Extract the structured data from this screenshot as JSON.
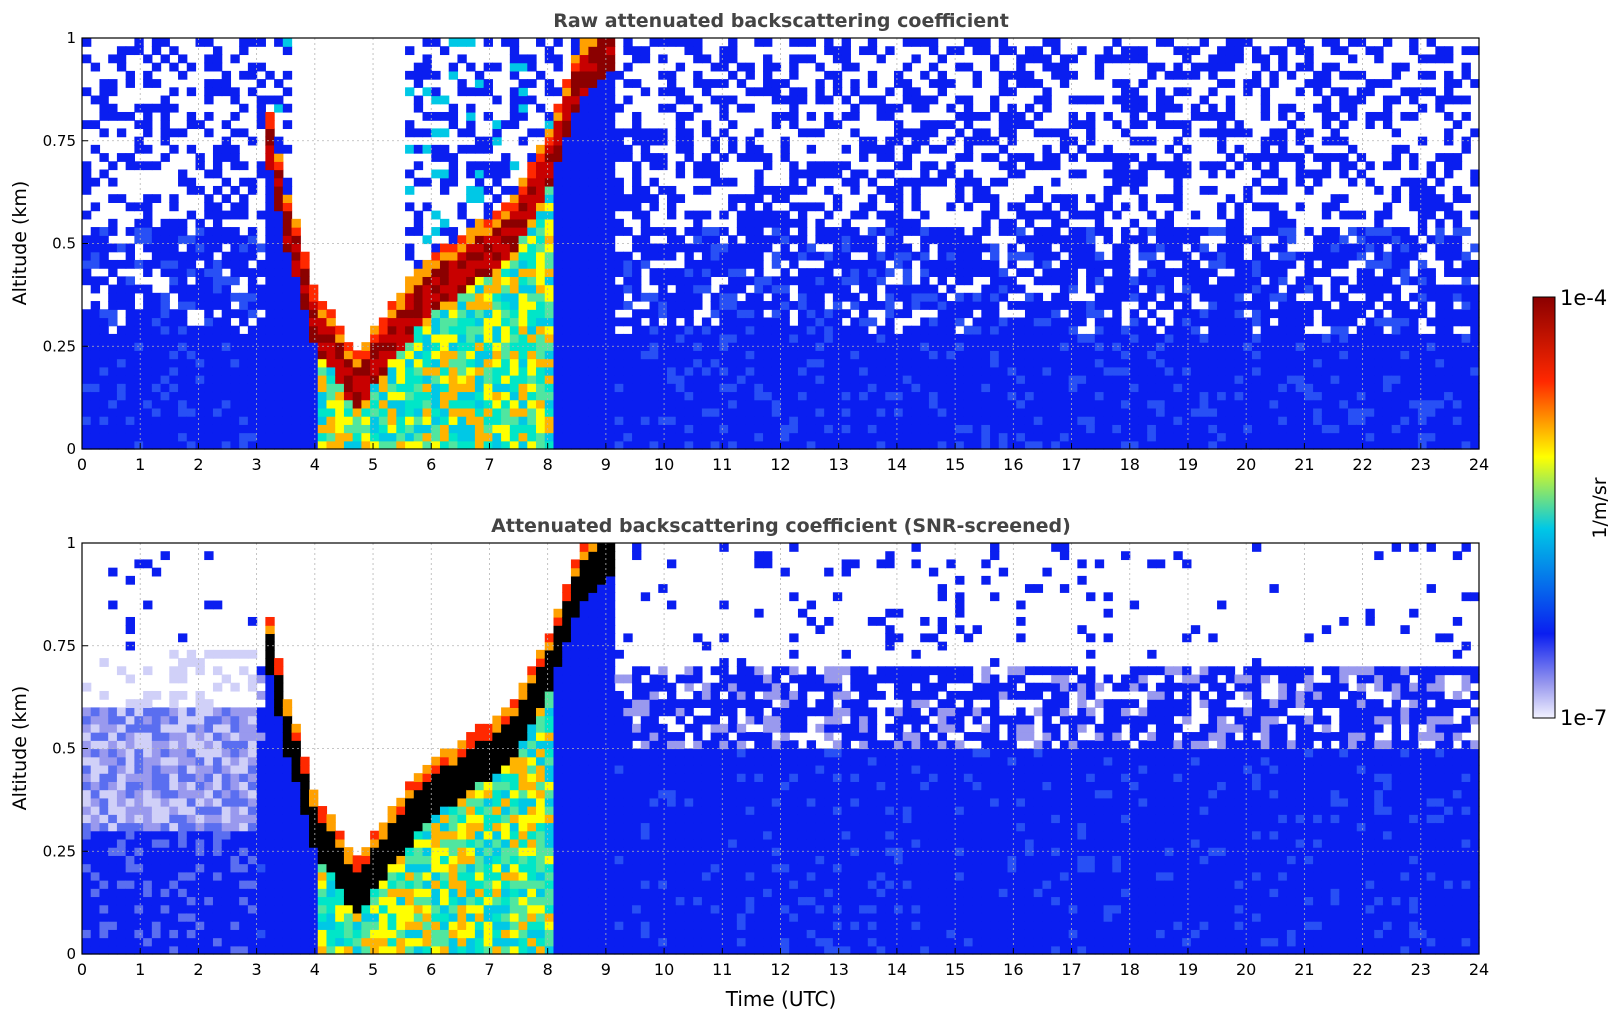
{
  "chart_data": [
    {
      "type": "heatmap",
      "title": "Raw attenuated backscattering coefficient",
      "xlabel": "",
      "ylabel": "Altitude (km)",
      "xlim": [
        0,
        24
      ],
      "ylim": [
        0,
        1
      ],
      "x_ticks": [
        "0",
        "1",
        "2",
        "3",
        "4",
        "5",
        "6",
        "7",
        "8",
        "9",
        "10",
        "11",
        "12",
        "13",
        "14",
        "15",
        "16",
        "17",
        "18",
        "19",
        "20",
        "21",
        "22",
        "23",
        "24"
      ],
      "y_ticks": [
        "0",
        "0.25",
        "0.5",
        "0.75",
        "1"
      ],
      "grid": true,
      "features": {
        "boundary_layer_top_km": [
          {
            "t": 3.1,
            "z": 0.8
          },
          {
            "t": 3.5,
            "z": 0.55
          },
          {
            "t": 4.0,
            "z": 0.3
          },
          {
            "t": 4.7,
            "z": 0.15
          },
          {
            "t": 5.0,
            "z": 0.2
          },
          {
            "t": 5.5,
            "z": 0.3
          },
          {
            "t": 6.0,
            "z": 0.38
          },
          {
            "t": 6.5,
            "z": 0.43
          },
          {
            "t": 7.0,
            "z": 0.48
          },
          {
            "t": 7.5,
            "z": 0.55
          },
          {
            "t": 8.0,
            "z": 0.68
          },
          {
            "t": 8.5,
            "z": 0.88
          },
          {
            "t": 9.2,
            "z": 1.0
          }
        ]
      }
    },
    {
      "type": "heatmap",
      "title": "Attenuated backscattering coefficient (SNR-screened)",
      "xlabel": "Time (UTC)",
      "ylabel": "Altitude (km)",
      "xlim": [
        0,
        24
      ],
      "ylim": [
        0,
        1
      ],
      "x_ticks": [
        "0",
        "1",
        "2",
        "3",
        "4",
        "5",
        "6",
        "7",
        "8",
        "9",
        "10",
        "11",
        "12",
        "13",
        "14",
        "15",
        "16",
        "17",
        "18",
        "19",
        "20",
        "21",
        "22",
        "23",
        "24"
      ],
      "y_ticks": [
        "0",
        "0.25",
        "0.5",
        "0.75",
        "1"
      ],
      "grid": true
    }
  ],
  "colorbar": {
    "label": "1/m/sr",
    "max_label": "1e-4",
    "min_label": "1e-7",
    "scale": "log",
    "colors": [
      "#f2f2ff",
      "#9999ee",
      "#0a1ef0",
      "#00c8e6",
      "#ffff00",
      "#ff2800",
      "#8b0000"
    ]
  }
}
